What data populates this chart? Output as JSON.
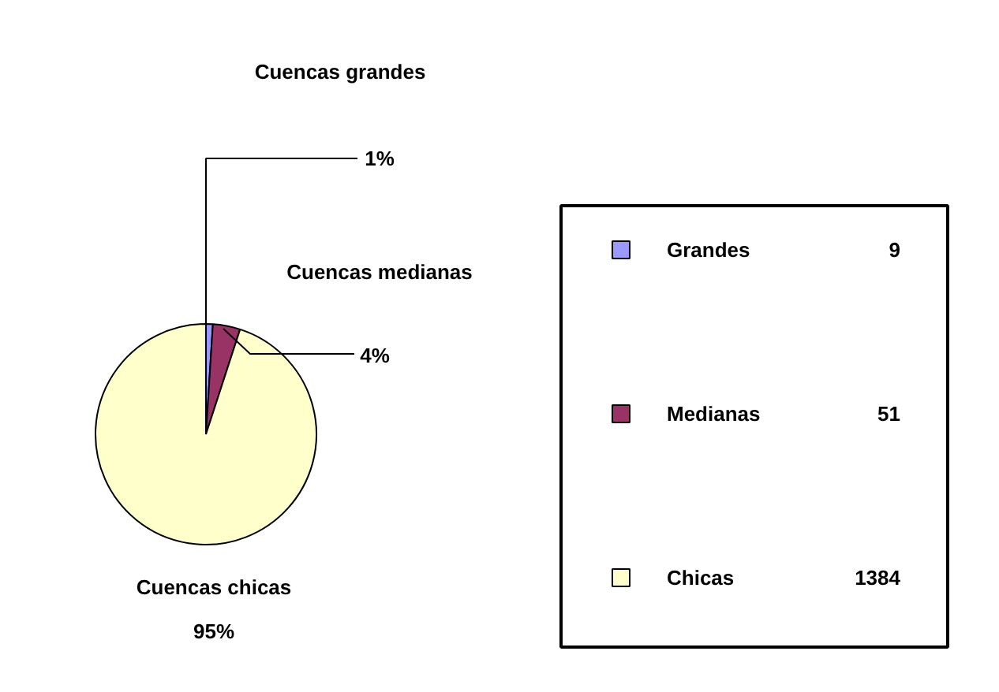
{
  "chart_data": {
    "type": "pie",
    "categories": [
      "Grandes",
      "Medianas",
      "Chicas"
    ],
    "values": [
      1,
      4,
      95
    ],
    "colors": [
      "#9999ff",
      "#993366",
      "#ffffcc"
    ],
    "value_labels": [
      "1%",
      "4%",
      "95%"
    ],
    "annotations": [
      "Cuencas grandes",
      "Cuencas medianas",
      "Cuencas chicas",
      "9",
      "51",
      "1384"
    ],
    "legend": "right"
  }
}
